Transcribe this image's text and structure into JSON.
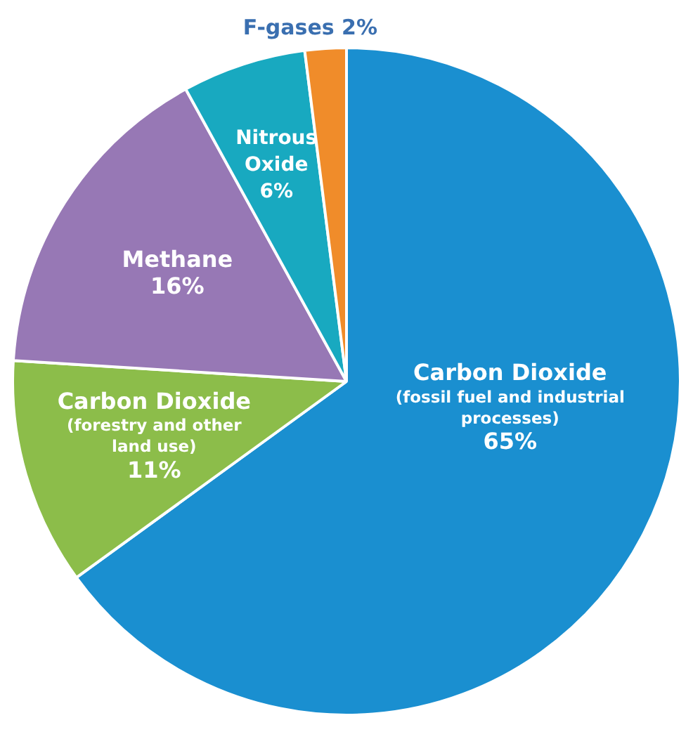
{
  "chart_data": {
    "type": "pie",
    "categories": [
      "Carbon Dioxide\n(fossil fuel and industrial\nprocesses)",
      "Carbon Dioxide\n(forestry and other\nland use)",
      "Methane",
      "Nitrous\nOxide",
      "F-gases"
    ],
    "values": [
      65,
      11,
      16,
      6,
      2
    ],
    "value_labels": [
      "65%",
      "11%",
      "16%",
      "6%",
      "2%"
    ],
    "colors": [
      "#1a8fd0",
      "#8cbd4a",
      "#9778b5",
      "#18a9c0",
      "#f08c2a"
    ],
    "legend": false
  }
}
